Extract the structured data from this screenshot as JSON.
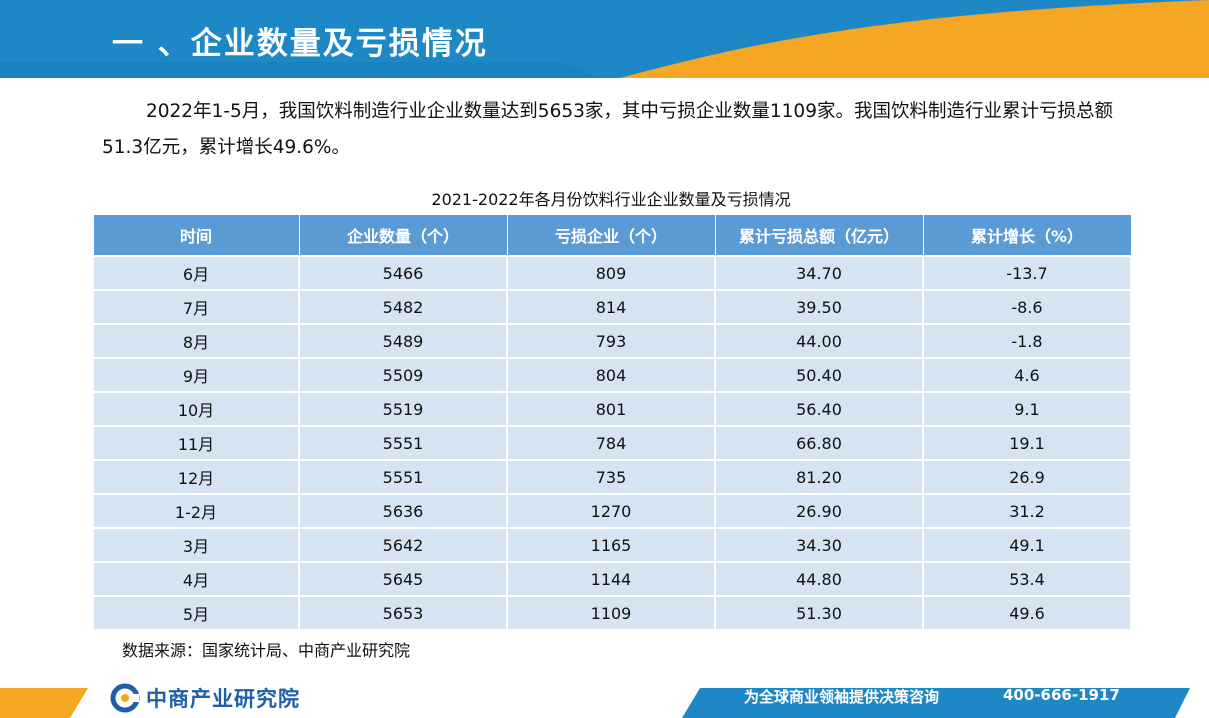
{
  "header": {
    "title": "一 、企业数量及亏损情况"
  },
  "intro": {
    "text": "2022年1-5月，我国饮料制造行业企业数量达到5653家，其中亏损企业数量1109家。我国饮料制造行业累计亏损总额51.3亿元，累计增长49.6%。"
  },
  "table": {
    "caption": "2021-2022年各月份饮料行业企业数量及亏损情况",
    "headers": [
      "时间",
      "企业数量（个）",
      "亏损企业（个）",
      "累计亏损总额（亿元）",
      "累计增长（%）"
    ],
    "rows": [
      [
        "6月",
        "5466",
        "809",
        "34.70",
        "-13.7"
      ],
      [
        "7月",
        "5482",
        "814",
        "39.50",
        "-8.6"
      ],
      [
        "8月",
        "5489",
        "793",
        "44.00",
        "-1.8"
      ],
      [
        "9月",
        "5509",
        "804",
        "50.40",
        "4.6"
      ],
      [
        "10月",
        "5519",
        "801",
        "56.40",
        "9.1"
      ],
      [
        "11月",
        "5551",
        "784",
        "66.80",
        "19.1"
      ],
      [
        "12月",
        "5551",
        "735",
        "81.20",
        "26.9"
      ],
      [
        "1-2月",
        "5636",
        "1270",
        "26.90",
        "31.2"
      ],
      [
        "3月",
        "5642",
        "1165",
        "34.30",
        "49.1"
      ],
      [
        "4月",
        "5645",
        "1144",
        "44.80",
        "53.4"
      ],
      [
        "5月",
        "5653",
        "1109",
        "51.30",
        "49.6"
      ]
    ]
  },
  "source": "数据来源：国家统计局、中商产业研究院",
  "footer": {
    "logo_text": "中商产业研究院",
    "slogan": "为全球商业领袖提供决策咨询",
    "phone": "400-666-1917"
  },
  "colors": {
    "header_blue": "#1e88c7",
    "accent_orange": "#f5a623",
    "table_header": "#5b9bd5",
    "table_cell": "#d6e3f3",
    "footer_blue": "#1f5fa8"
  }
}
